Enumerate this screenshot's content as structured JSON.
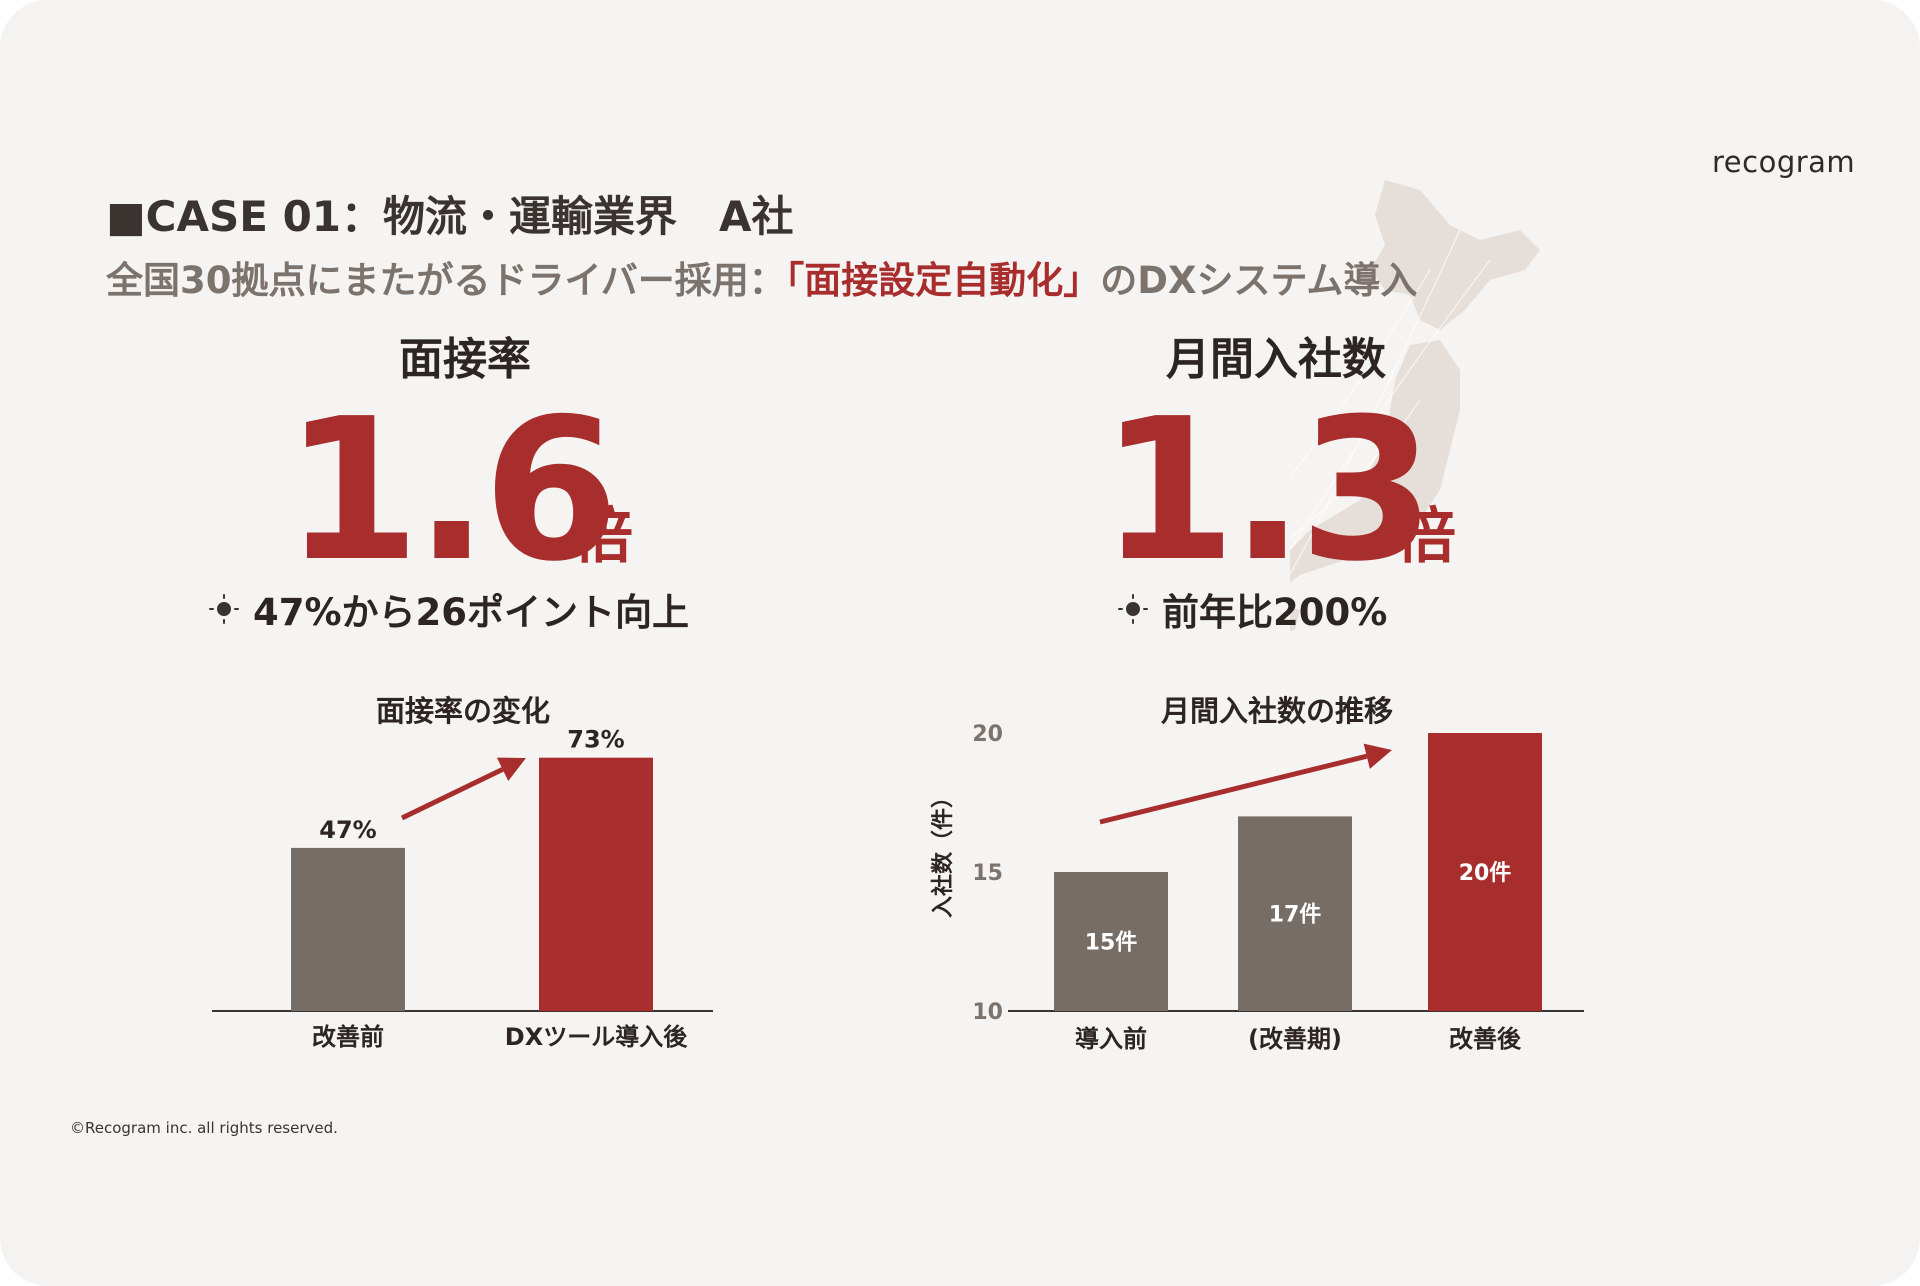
{
  "logo": "recogram",
  "header": {
    "case_title": "■CASE 01：物流・運輸業界　A社",
    "subtitle_prefix": "全国30拠点にまたがるドライバー採用：",
    "subtitle_accent": "「面接設定自動化」",
    "subtitle_suffix": "のDXシステム導入"
  },
  "metrics": [
    {
      "label": "面接率",
      "value": "1.6",
      "unit": "倍",
      "note": "47%から26ポイント向上"
    },
    {
      "label": "月間入社数",
      "value": "1.3",
      "unit": "倍",
      "note": "前年比200%"
    }
  ],
  "colors": {
    "accent": "#a82e2e",
    "gray_bar": "#756d66",
    "background": "#f5f3f1",
    "map": "#e6dfd9"
  },
  "icons": {
    "note_bullet": "sun-icon",
    "map": "japan-map"
  },
  "chart_data": [
    {
      "type": "bar",
      "title": "面接率の変化",
      "categories": [
        "改善前",
        "DXツール導入後"
      ],
      "values": [
        47,
        73
      ],
      "data_labels": [
        "47%",
        "73%"
      ],
      "colors": [
        "#756d66",
        "#a82e2e"
      ],
      "ylim": [
        0,
        80
      ],
      "grid": false,
      "trend_arrow": true
    },
    {
      "type": "bar",
      "title": "月間入社数の推移",
      "categories": [
        "導入前",
        "(改善期)",
        "改善後"
      ],
      "values": [
        15,
        17,
        20
      ],
      "data_labels": [
        "15件",
        "17件",
        "20件"
      ],
      "colors": [
        "#756d66",
        "#756d66",
        "#a82e2e"
      ],
      "ylabel": "入社数（件）",
      "yticks": [
        10,
        15,
        20
      ],
      "ylim": [
        10,
        20.3
      ],
      "grid": false,
      "trend_arrow": true
    }
  ],
  "footer": "©Recogram inc. all rights reserved."
}
